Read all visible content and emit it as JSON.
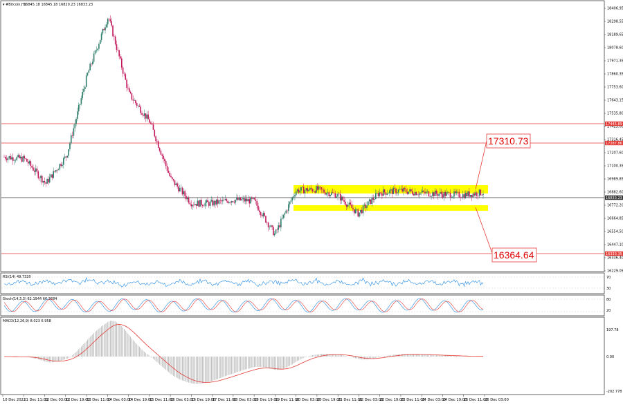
{
  "header": {
    "symbol_label": "#Bitcoin,H1",
    "ohlc": "16845.18 16845.18 16820.23 16833.23"
  },
  "price_axis_labels": [
    "18406.95",
    "18298.55",
    "18189.65",
    "18078.60",
    "17971.35",
    "17860.35",
    "17753.60",
    "17643.15",
    "17535.80",
    "17425.00",
    "17316.45",
    "17207.60",
    "17100.35",
    "16989.85",
    "16882.60",
    "16772.20",
    "16664.85",
    "16554.50",
    "16447.10",
    "16336.40",
    "16229.05"
  ],
  "price_tags": {
    "red_upper": "17445.89",
    "red_mid": "17287.86",
    "current": "16833.23",
    "red_lower": "16333.35"
  },
  "callouts": {
    "upper": "17310.73",
    "lower": "16364.64"
  },
  "indicators": {
    "rsi": {
      "label": "RSI(14) 49.7330",
      "levels": [
        "70",
        "30"
      ]
    },
    "stoch": {
      "label": "Stoch(14,3,3) 62.1944 66.3684",
      "levels": [
        "80",
        "20"
      ]
    },
    "macd": {
      "label": "MACD(12,26,9) 8.023 6.958",
      "levels": [
        "197.78",
        "0.00",
        "-202.778"
      ]
    }
  },
  "x_labels": [
    "10 Dec 2022",
    "11 Dec 11:00",
    "12 Dec 03:00",
    "12 Dec 19:00",
    "13 Dec 11:00",
    "14 Dec 03:00",
    "14 Dec 19:00",
    "15 Dec 11:00",
    "16 Dec 03:00",
    "16 Dec 19:00",
    "17 Dec 11:00",
    "18 Dec 03:00",
    "18 Dec 19:00",
    "19 Dec 11:00",
    "20 Dec 03:00",
    "20 Dec 19:00",
    "21 Dec 11:00",
    "22 Dec 03:00",
    "22 Dec 19:00",
    "23 Dec 11:00",
    "24 Dec 03:00",
    "24 Dec 19:00",
    "25 Dec 11:00",
    "26 Dec 03:00"
  ],
  "chart_data": {
    "type": "candlestick",
    "symbol": "#Bitcoin",
    "timeframe": "H1",
    "ylim": [
      16229.05,
      18406.95
    ],
    "horizontal_levels": [
      17445.89,
      17287.86,
      16833.23,
      16333.35
    ],
    "consolidation_zone": {
      "from": "20 Dec 03:00",
      "to": "26 Dec 03:00",
      "top": 16930,
      "bottom": 16760
    },
    "projected_targets": [
      17310.73,
      16364.64
    ],
    "close_path": [
      {
        "t": "10 Dec 2022",
        "close": 17140
      },
      {
        "t": "11 Dec 11:00",
        "close": 17120
      },
      {
        "t": "12 Dec 03:00",
        "close": 16910
      },
      {
        "t": "12 Dec 19:00",
        "close": 17150
      },
      {
        "t": "13 Dec 11:00",
        "close": 17850
      },
      {
        "t": "14 Dec 03:00",
        "close": 18350
      },
      {
        "t": "14 Dec 19:00",
        "close": 17680
      },
      {
        "t": "15 Dec 11:00",
        "close": 17440
      },
      {
        "t": "16 Dec 03:00",
        "close": 16950
      },
      {
        "t": "16 Dec 19:00",
        "close": 16740
      },
      {
        "t": "17 Dec 11:00",
        "close": 16740
      },
      {
        "t": "18 Dec 03:00",
        "close": 16770
      },
      {
        "t": "18 Dec 19:00",
        "close": 16760
      },
      {
        "t": "19 Dec 11:00",
        "close": 16470
      },
      {
        "t": "20 Dec 03:00",
        "close": 16850
      },
      {
        "t": "20 Dec 19:00",
        "close": 16860
      },
      {
        "t": "21 Dec 11:00",
        "close": 16810
      },
      {
        "t": "22 Dec 03:00",
        "close": 16650
      },
      {
        "t": "22 Dec 19:00",
        "close": 16830
      },
      {
        "t": "23 Dec 11:00",
        "close": 16850
      },
      {
        "t": "24 Dec 03:00",
        "close": 16830
      },
      {
        "t": "24 Dec 19:00",
        "close": 16820
      },
      {
        "t": "25 Dec 11:00",
        "close": 16810
      },
      {
        "t": "26 Dec 03:00",
        "close": 16833
      }
    ],
    "colors": {
      "up": "#2e7d6b",
      "down": "#c2185b",
      "levels": "#e53935",
      "zone": "#ffff00",
      "rsi": "#1e88e5",
      "signal": "#e53935",
      "hist": "#b0b0b0"
    }
  }
}
